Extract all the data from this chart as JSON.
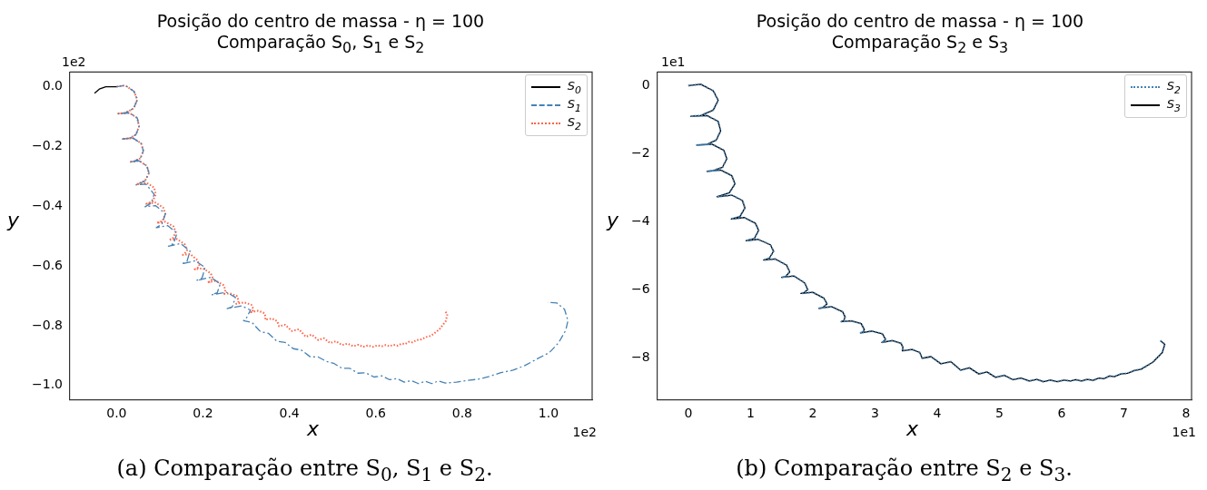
{
  "chart_data": [
    {
      "type": "line",
      "title": "Posição do centro de massa - η = 100",
      "subtitle": "Comparação S$_{0}$, S$_{1}$ e S$_{2}$",
      "xlabel": "x",
      "ylabel": "y",
      "legend": "top right",
      "xlim": [
        -0.108,
        1.101
      ],
      "ylim": [
        -1.047,
        0.049
      ],
      "xticks": [
        {
          "value": 0,
          "label": "0.0"
        },
        {
          "value": 0.2,
          "label": "0.2"
        },
        {
          "value": 0.4,
          "label": "0.4"
        },
        {
          "value": 0.6,
          "label": "0.6"
        },
        {
          "value": 0.8,
          "label": "0.8"
        },
        {
          "value": 1,
          "label": "1.0"
        }
      ],
      "yticks": [
        {
          "value": 0,
          "label": "0.0"
        },
        {
          "value": -0.2,
          "label": "−0.2"
        },
        {
          "value": -0.4,
          "label": "−0.4"
        },
        {
          "value": -0.6,
          "label": "−0.6"
        },
        {
          "value": -0.8,
          "label": "−0.8"
        },
        {
          "value": -1,
          "label": "−1.0"
        }
      ],
      "annotations": [
        "1e2",
        "1e2",
        "(a) Comparação entre S$_{0}$, S$_{1}$ e S$_{2}$."
      ],
      "series": [
        {
          "name": "S$_{0}$",
          "color": "#000000",
          "line_style": "solid",
          "x": [
            -0.051,
            -0.04,
            -0.025,
            0
          ],
          "values": [
            -0.022,
            -0.008,
            0,
            0
          ]
        },
        {
          "name": "S$_{1}$",
          "color": "#4682b4",
          "line_style": "dashdot",
          "x": [
            0,
            0.02,
            0.04,
            0.048,
            0.04,
            0.02,
            0.004,
            0.03,
            0.048,
            0.052,
            0.045,
            0.03,
            0.0134,
            0.038,
            0.057,
            0.062,
            0.055,
            0.04,
            0.03,
            0.052,
            0.07,
            0.075,
            0.066,
            0.045,
            0.068,
            0.087,
            0.08,
            0.066,
            0.09,
            0.113,
            0.105,
            0.092,
            0.118,
            0.14,
            0.132,
            0.12,
            0.148,
            0.17,
            0.163,
            0.151,
            0.182,
            0.205,
            0.198,
            0.185,
            0.218,
            0.24,
            0.233,
            0.22,
            0.254,
            0.275,
            0.268,
            0.256,
            0.29,
            0.31,
            0.3,
            0.294,
            0.314,
            0.333,
            0.352,
            0.371,
            0.39,
            0.409,
            0.428,
            0.448,
            0.467,
            0.486,
            0.504,
            0.522,
            0.54,
            0.559,
            0.577,
            0.596,
            0.614,
            0.632,
            0.649,
            0.666,
            0.682,
            0.699,
            0.715,
            0.73,
            0.745,
            0.761,
            0.787,
            0.814,
            0.838,
            0.863,
            0.89,
            0.918,
            0.946,
            0.974,
            1.002,
            1.023,
            1.04,
            1.045,
            1.037,
            1.019,
            0.998
          ],
          "values": [
            0,
            0.004,
            -0.015,
            -0.043,
            -0.072,
            -0.088,
            -0.09,
            -0.088,
            -0.105,
            -0.133,
            -0.16,
            -0.173,
            -0.175,
            -0.172,
            -0.19,
            -0.215,
            -0.24,
            -0.25,
            -0.252,
            -0.248,
            -0.265,
            -0.289,
            -0.315,
            -0.329,
            -0.326,
            -0.36,
            -0.39,
            -0.402,
            -0.398,
            -0.425,
            -0.46,
            -0.472,
            -0.465,
            -0.49,
            -0.525,
            -0.534,
            -0.525,
            -0.55,
            -0.585,
            -0.593,
            -0.583,
            -0.605,
            -0.64,
            -0.649,
            -0.638,
            -0.66,
            -0.69,
            -0.697,
            -0.688,
            -0.705,
            -0.737,
            -0.743,
            -0.734,
            -0.748,
            -0.776,
            -0.783,
            -0.79,
            -0.82,
            -0.826,
            -0.852,
            -0.856,
            -0.877,
            -0.882,
            -0.904,
            -0.905,
            -0.92,
            -0.927,
            -0.943,
            -0.943,
            -0.959,
            -0.958,
            -0.972,
            -0.968,
            -0.981,
            -0.977,
            -0.989,
            -0.984,
            -0.994,
            -0.986,
            -0.994,
            -0.985,
            -0.992,
            -0.989,
            -0.983,
            -0.979,
            -0.97,
            -0.957,
            -0.949,
            -0.933,
            -0.911,
            -0.89,
            -0.858,
            -0.815,
            -0.783,
            -0.745,
            -0.724,
            -0.722
          ]
        },
        {
          "name": "S$_{2}$",
          "color": "#ff6347",
          "line_style": "dotted",
          "x": [
            0,
            0.02,
            0.04,
            0.048,
            0.04,
            0.02,
            0.004,
            0.03,
            0.048,
            0.052,
            0.045,
            0.03,
            0.0134,
            0.038,
            0.057,
            0.062,
            0.055,
            0.04,
            0.03,
            0.052,
            0.07,
            0.075,
            0.066,
            0.046,
            0.07,
            0.087,
            0.091,
            0.083,
            0.069,
            0.09,
            0.108,
            0.113,
            0.106,
            0.093,
            0.112,
            0.132,
            0.137,
            0.13,
            0.121,
            0.14,
            0.158,
            0.163,
            0.156,
            0.15,
            0.17,
            0.187,
            0.192,
            0.186,
            0.181,
            0.2,
            0.218,
            0.223,
            0.216,
            0.21,
            0.23,
            0.248,
            0.252,
            0.25,
            0.246,
            0.262,
            0.278,
            0.283,
            0.28,
            0.277,
            0.295,
            0.312,
            0.317,
            0.313,
            0.311,
            0.328,
            0.342,
            0.345,
            0.344,
            0.36,
            0.372,
            0.376,
            0.39,
            0.406,
            0.422,
            0.438,
            0.452,
            0.467,
            0.48,
            0.494,
            0.508,
            0.522,
            0.535,
            0.548,
            0.56,
            0.571,
            0.582,
            0.593,
            0.604,
            0.614,
            0.623,
            0.632,
            0.641,
            0.651,
            0.66,
            0.668,
            0.677,
            0.685,
            0.695,
            0.706,
            0.717,
            0.728,
            0.747,
            0.762,
            0.766,
            0.759
          ],
          "values": [
            0,
            0.004,
            -0.015,
            -0.043,
            -0.072,
            -0.088,
            -0.09,
            -0.088,
            -0.105,
            -0.133,
            -0.16,
            -0.173,
            -0.175,
            -0.172,
            -0.19,
            -0.215,
            -0.24,
            -0.25,
            -0.252,
            -0.248,
            -0.265,
            -0.289,
            -0.315,
            -0.327,
            -0.322,
            -0.338,
            -0.36,
            -0.385,
            -0.392,
            -0.388,
            -0.405,
            -0.426,
            -0.45,
            -0.456,
            -0.452,
            -0.468,
            -0.487,
            -0.508,
            -0.513,
            -0.51,
            -0.528,
            -0.548,
            -0.562,
            -0.564,
            -0.56,
            -0.58,
            -0.6,
            -0.609,
            -0.611,
            -0.608,
            -0.625,
            -0.642,
            -0.653,
            -0.655,
            -0.65,
            -0.665,
            -0.68,
            -0.692,
            -0.694,
            -0.692,
            -0.7,
            -0.718,
            -0.726,
            -0.727,
            -0.722,
            -0.73,
            -0.746,
            -0.754,
            -0.755,
            -0.75,
            -0.758,
            -0.77,
            -0.78,
            -0.776,
            -0.785,
            -0.802,
            -0.797,
            -0.818,
            -0.812,
            -0.837,
            -0.83,
            -0.848,
            -0.842,
            -0.858,
            -0.852,
            -0.865,
            -0.86,
            -0.869,
            -0.864,
            -0.871,
            -0.866,
            -0.871,
            -0.866,
            -0.869,
            -0.865,
            -0.869,
            -0.864,
            -0.867,
            -0.86,
            -0.862,
            -0.854,
            -0.856,
            -0.848,
            -0.846,
            -0.838,
            -0.834,
            -0.813,
            -0.785,
            -0.761,
            -0.75
          ]
        }
      ]
    },
    {
      "type": "line",
      "title": "Posição do centro de massa - η = 100",
      "subtitle": "Comparação S$_{2}$ e S$_{3}$",
      "xlabel": "x",
      "ylabel": "y",
      "legend": "top right",
      "xlim": [
        -0.5,
        8.09
      ],
      "ylim": [
        -9.23,
        0.4
      ],
      "xticks": [
        0,
        1,
        2,
        3,
        4,
        5,
        6,
        7,
        8
      ],
      "yticks": [
        {
          "value": 0,
          "label": "0"
        },
        {
          "value": -2,
          "label": "−2"
        },
        {
          "value": -4,
          "label": "−4"
        },
        {
          "value": -6,
          "label": "−6"
        },
        {
          "value": -8,
          "label": "−8"
        }
      ],
      "annotations": [
        "1e1",
        "1e1",
        "(b) Comparação entre S$_{2}$ e S$_{3}$."
      ],
      "series": [
        {
          "name": "S$_{2}$",
          "color": "#4682b4",
          "line_style": "dotted",
          "x": [
            0,
            0.2,
            0.4,
            0.48,
            0.4,
            0.2,
            0.04,
            0.3,
            0.48,
            0.52,
            0.45,
            0.3,
            0.134,
            0.38,
            0.57,
            0.62,
            0.55,
            0.4,
            0.3,
            0.52,
            0.7,
            0.75,
            0.66,
            0.46,
            0.7,
            0.87,
            0.91,
            0.83,
            0.69,
            0.9,
            1.08,
            1.13,
            1.06,
            0.93,
            1.12,
            1.32,
            1.37,
            1.3,
            1.21,
            1.4,
            1.58,
            1.63,
            1.56,
            1.5,
            1.7,
            1.87,
            1.92,
            1.86,
            1.81,
            2.0,
            2.18,
            2.23,
            2.16,
            2.1,
            2.3,
            2.48,
            2.52,
            2.5,
            2.46,
            2.62,
            2.78,
            2.83,
            2.8,
            2.77,
            2.95,
            3.12,
            3.17,
            3.13,
            3.11,
            3.28,
            3.42,
            3.45,
            3.44,
            3.6,
            3.72,
            3.76,
            3.9,
            4.06,
            4.22,
            4.38,
            4.52,
            4.67,
            4.8,
            4.94,
            5.08,
            5.22,
            5.35,
            5.48,
            5.6,
            5.71,
            5.82,
            5.93,
            6.04,
            6.14,
            6.23,
            6.32,
            6.41,
            6.51,
            6.6,
            6.68,
            6.77,
            6.85,
            6.95,
            7.06,
            7.17,
            7.28,
            7.47,
            7.62,
            7.66,
            7.59
          ],
          "values": [
            0,
            0.04,
            -0.15,
            -0.43,
            -0.72,
            -0.88,
            -0.9,
            -0.88,
            -1.05,
            -1.33,
            -1.6,
            -1.73,
            -1.75,
            -1.72,
            -1.9,
            -2.15,
            -2.4,
            -2.5,
            -2.52,
            -2.48,
            -2.65,
            -2.89,
            -3.15,
            -3.27,
            -3.22,
            -3.38,
            -3.6,
            -3.85,
            -3.92,
            -3.88,
            -4.05,
            -4.26,
            -4.5,
            -4.56,
            -4.52,
            -4.68,
            -4.87,
            -5.08,
            -5.13,
            -5.1,
            -5.28,
            -5.48,
            -5.62,
            -5.64,
            -5.6,
            -5.8,
            -6.0,
            -6.09,
            -6.11,
            -6.08,
            -6.25,
            -6.42,
            -6.53,
            -6.55,
            -6.5,
            -6.65,
            -6.8,
            -6.92,
            -6.94,
            -6.92,
            -7.0,
            -7.18,
            -7.26,
            -7.27,
            -7.22,
            -7.3,
            -7.46,
            -7.54,
            -7.55,
            -7.5,
            -7.58,
            -7.7,
            -7.8,
            -7.76,
            -7.85,
            -8.02,
            -7.97,
            -8.18,
            -8.12,
            -8.37,
            -8.3,
            -8.48,
            -8.42,
            -8.58,
            -8.52,
            -8.65,
            -8.6,
            -8.69,
            -8.64,
            -8.71,
            -8.66,
            -8.71,
            -8.66,
            -8.69,
            -8.65,
            -8.69,
            -8.64,
            -8.67,
            -8.6,
            -8.62,
            -8.54,
            -8.56,
            -8.48,
            -8.46,
            -8.38,
            -8.34,
            -8.13,
            -7.85,
            -7.61,
            -7.5
          ]
        },
        {
          "name": "S$_{3}$",
          "color": "#000000",
          "line_style": "solid",
          "x": [
            0,
            0.2,
            0.4,
            0.48,
            0.4,
            0.2,
            0.04,
            0.3,
            0.48,
            0.52,
            0.45,
            0.3,
            0.134,
            0.38,
            0.57,
            0.62,
            0.55,
            0.4,
            0.3,
            0.52,
            0.7,
            0.75,
            0.66,
            0.46,
            0.7,
            0.87,
            0.91,
            0.83,
            0.69,
            0.9,
            1.08,
            1.13,
            1.06,
            0.93,
            1.12,
            1.32,
            1.37,
            1.3,
            1.21,
            1.4,
            1.58,
            1.63,
            1.56,
            1.5,
            1.7,
            1.87,
            1.92,
            1.86,
            1.81,
            2.0,
            2.18,
            2.23,
            2.16,
            2.1,
            2.3,
            2.48,
            2.52,
            2.5,
            2.46,
            2.62,
            2.78,
            2.83,
            2.8,
            2.77,
            2.95,
            3.12,
            3.17,
            3.13,
            3.11,
            3.28,
            3.42,
            3.45,
            3.44,
            3.6,
            3.72,
            3.76,
            3.9,
            4.06,
            4.22,
            4.38,
            4.52,
            4.67,
            4.8,
            4.94,
            5.08,
            5.22,
            5.35,
            5.48,
            5.6,
            5.71,
            5.82,
            5.93,
            6.04,
            6.14,
            6.23,
            6.32,
            6.41,
            6.51,
            6.6,
            6.68,
            6.77,
            6.85,
            6.95,
            7.06,
            7.17,
            7.28,
            7.47,
            7.62,
            7.66,
            7.59
          ],
          "values": [
            0,
            0.04,
            -0.15,
            -0.43,
            -0.72,
            -0.88,
            -0.9,
            -0.88,
            -1.05,
            -1.33,
            -1.6,
            -1.73,
            -1.75,
            -1.72,
            -1.9,
            -2.15,
            -2.4,
            -2.5,
            -2.52,
            -2.48,
            -2.65,
            -2.89,
            -3.15,
            -3.27,
            -3.22,
            -3.38,
            -3.6,
            -3.85,
            -3.92,
            -3.88,
            -4.05,
            -4.26,
            -4.5,
            -4.56,
            -4.52,
            -4.68,
            -4.87,
            -5.08,
            -5.13,
            -5.1,
            -5.28,
            -5.48,
            -5.62,
            -5.64,
            -5.6,
            -5.8,
            -6.0,
            -6.09,
            -6.11,
            -6.08,
            -6.25,
            -6.42,
            -6.53,
            -6.55,
            -6.5,
            -6.65,
            -6.8,
            -6.92,
            -6.94,
            -6.92,
            -7.0,
            -7.18,
            -7.26,
            -7.27,
            -7.22,
            -7.3,
            -7.46,
            -7.54,
            -7.55,
            -7.5,
            -7.58,
            -7.7,
            -7.8,
            -7.76,
            -7.85,
            -8.02,
            -7.97,
            -8.18,
            -8.12,
            -8.37,
            -8.3,
            -8.48,
            -8.42,
            -8.58,
            -8.52,
            -8.65,
            -8.6,
            -8.69,
            -8.64,
            -8.71,
            -8.66,
            -8.71,
            -8.66,
            -8.69,
            -8.65,
            -8.69,
            -8.64,
            -8.67,
            -8.6,
            -8.62,
            -8.54,
            -8.56,
            -8.48,
            -8.46,
            -8.38,
            -8.34,
            -8.13,
            -7.85,
            -7.61,
            -7.5
          ]
        }
      ]
    }
  ]
}
